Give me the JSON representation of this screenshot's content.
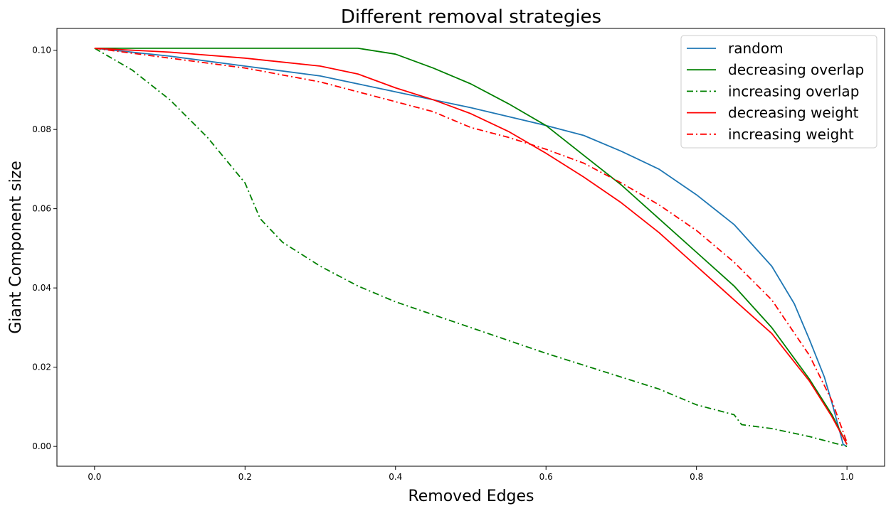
{
  "chart_data": {
    "type": "line",
    "title": "Different removal strategies",
    "xlabel": "Removed Edges",
    "ylabel": "Giant Component size",
    "xlim": [
      -0.05,
      1.05
    ],
    "ylim": [
      -0.005,
      0.1055
    ],
    "xticks": [
      0.0,
      0.2,
      0.4,
      0.6,
      0.8,
      1.0
    ],
    "xtick_labels": [
      "0.0",
      "0.2",
      "0.4",
      "0.6",
      "0.8",
      "1.0"
    ],
    "yticks": [
      0.0,
      0.02,
      0.04,
      0.06,
      0.08,
      0.1
    ],
    "ytick_labels": [
      "0.00",
      "0.02",
      "0.04",
      "0.06",
      "0.08",
      "0.10"
    ],
    "grid": false,
    "legend": "top-right",
    "series": [
      {
        "name": "random",
        "color": "#1f77b4",
        "style": "solid",
        "x": [
          0,
          0.1,
          0.2,
          0.3,
          0.4,
          0.5,
          0.6,
          0.65,
          0.7,
          0.75,
          0.8,
          0.85,
          0.9,
          0.93,
          0.95,
          0.97,
          0.98,
          0.99,
          0.995,
          1.0
        ],
        "y": [
          0.1005,
          0.0985,
          0.096,
          0.0935,
          0.0895,
          0.0855,
          0.081,
          0.0785,
          0.0745,
          0.07,
          0.0635,
          0.056,
          0.0455,
          0.036,
          0.027,
          0.0175,
          0.011,
          0.004,
          0.0005,
          0.0
        ]
      },
      {
        "name": "decreasing overlap",
        "color": "#008000",
        "style": "solid",
        "x": [
          0,
          0.1,
          0.2,
          0.3,
          0.35,
          0.4,
          0.45,
          0.5,
          0.55,
          0.6,
          0.65,
          0.7,
          0.75,
          0.8,
          0.85,
          0.9,
          0.95,
          0.98,
          1.0
        ],
        "y": [
          0.1005,
          0.1005,
          0.1005,
          0.1005,
          0.1005,
          0.099,
          0.0955,
          0.0915,
          0.0865,
          0.081,
          0.0735,
          0.066,
          0.0575,
          0.049,
          0.0405,
          0.03,
          0.017,
          0.008,
          0.0005
        ]
      },
      {
        "name": "increasing overlap",
        "color": "#008000",
        "style": "dashdot",
        "x": [
          0,
          0.05,
          0.1,
          0.15,
          0.2,
          0.22,
          0.25,
          0.3,
          0.35,
          0.4,
          0.5,
          0.6,
          0.7,
          0.75,
          0.8,
          0.85,
          0.86,
          0.9,
          0.95,
          0.98,
          1.0
        ],
        "y": [
          0.1005,
          0.095,
          0.0875,
          0.078,
          0.0665,
          0.0575,
          0.0515,
          0.0455,
          0.0405,
          0.0365,
          0.03,
          0.0235,
          0.0175,
          0.0145,
          0.0105,
          0.008,
          0.0055,
          0.0045,
          0.0025,
          0.001,
          0.0
        ]
      },
      {
        "name": "decreasing weight",
        "color": "#ff0000",
        "style": "solid",
        "x": [
          0,
          0.1,
          0.2,
          0.3,
          0.35,
          0.4,
          0.45,
          0.5,
          0.55,
          0.6,
          0.65,
          0.7,
          0.75,
          0.8,
          0.85,
          0.9,
          0.95,
          0.98,
          1.0
        ],
        "y": [
          0.1005,
          0.0995,
          0.098,
          0.096,
          0.094,
          0.0905,
          0.0875,
          0.084,
          0.0795,
          0.074,
          0.068,
          0.0615,
          0.054,
          0.0455,
          0.037,
          0.0285,
          0.0165,
          0.0075,
          0.0005
        ]
      },
      {
        "name": "increasing weight",
        "color": "#ff0000",
        "style": "dashdot",
        "x": [
          0,
          0.1,
          0.2,
          0.3,
          0.4,
          0.45,
          0.5,
          0.55,
          0.6,
          0.65,
          0.7,
          0.75,
          0.8,
          0.85,
          0.9,
          0.95,
          0.98,
          1.0
        ],
        "y": [
          0.1005,
          0.098,
          0.0955,
          0.092,
          0.087,
          0.0845,
          0.0805,
          0.078,
          0.075,
          0.0715,
          0.0665,
          0.061,
          0.0545,
          0.0465,
          0.037,
          0.023,
          0.0115,
          0.001
        ]
      }
    ]
  }
}
